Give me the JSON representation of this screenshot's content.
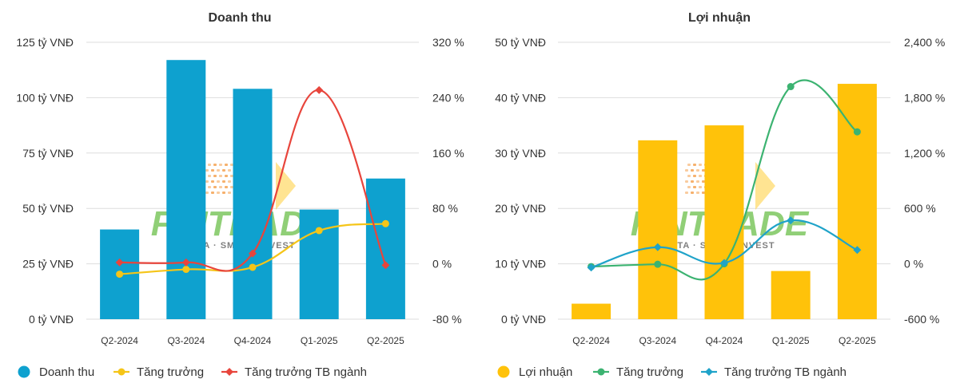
{
  "colors": {
    "bar_left": "#0EA1CF",
    "bar_right": "#FFC20A",
    "yellow_line": "#F5C518",
    "red_line": "#E8453C",
    "green_line": "#3CB371",
    "teal_line": "#1FA3C9",
    "grid": "#DDDDDD",
    "text": "#333333",
    "watermark_green": "#6CC04A",
    "watermark_orange": "#F28C28"
  },
  "watermark": {
    "brand": "FINTRADE",
    "tagline": "DATA · SMART INVEST"
  },
  "chart_data": [
    {
      "type": "bar+line",
      "title": "Doanh thu",
      "categories": [
        "Q2-2024",
        "Q3-2024",
        "Q4-2024",
        "Q1-2025",
        "Q2-2025"
      ],
      "y_left": {
        "ticks": [
          "0 tỷ VNĐ",
          "25 tỷ VNĐ",
          "50 tỷ VNĐ",
          "75 tỷ VNĐ",
          "100 tỷ VNĐ",
          "125 tỷ VNĐ"
        ],
        "min": 0,
        "max": 125,
        "unit": "tỷ VNĐ"
      },
      "y_right": {
        "ticks": [
          "-80 %",
          "0 %",
          "80 %",
          "160 %",
          "240 %",
          "320 %"
        ],
        "min": -80,
        "max": 320,
        "unit": "%"
      },
      "bars": {
        "name": "Doanh thu",
        "color": "#0EA1CF",
        "values": [
          40.5,
          117,
          104,
          49.5,
          63.5
        ]
      },
      "series": [
        {
          "name": "Tăng trưởng",
          "color": "#F5C518",
          "axis": "right",
          "values": [
            -15,
            -8,
            -5,
            48,
            58
          ]
        },
        {
          "name": "Tăng trưởng TB ngành",
          "color": "#E8453C",
          "axis": "right",
          "values": [
            2,
            2,
            15,
            251,
            -2
          ]
        }
      ],
      "legend": [
        {
          "label": "Doanh thu",
          "kind": "bar",
          "color": "#0EA1CF"
        },
        {
          "label": "Tăng trưởng",
          "kind": "line",
          "color": "#F5C518"
        },
        {
          "label": "Tăng trưởng TB ngành",
          "kind": "line",
          "color": "#E8453C"
        }
      ],
      "legend_position": "bottom-left",
      "grid": true
    },
    {
      "type": "bar+line",
      "title": "Lợi nhuận",
      "categories": [
        "Q2-2024",
        "Q3-2024",
        "Q4-2024",
        "Q1-2025",
        "Q2-2025"
      ],
      "y_left": {
        "ticks": [
          "0 tỷ VNĐ",
          "10 tỷ VNĐ",
          "20 tỷ VNĐ",
          "30 tỷ VNĐ",
          "40 tỷ VNĐ",
          "50 tỷ VNĐ"
        ],
        "min": 0,
        "max": 50,
        "unit": "tỷ VNĐ"
      },
      "y_right": {
        "ticks": [
          "-600 %",
          "0 %",
          "600 %",
          "1,200 %",
          "1,800 %",
          "2,400 %"
        ],
        "min": -600,
        "max": 2400,
        "unit": "%"
      },
      "bars": {
        "name": "Lợi nhuận",
        "color": "#FFC20A",
        "values": [
          2.8,
          32.3,
          35,
          8.7,
          42.5
        ]
      },
      "series": [
        {
          "name": "Tăng trưởng",
          "color": "#3CB371",
          "axis": "right",
          "values": [
            -30,
            -5,
            0,
            1920,
            1430
          ]
        },
        {
          "name": "Tăng trưởng TB ngành",
          "color": "#1FA3C9",
          "axis": "right",
          "values": [
            -40,
            180,
            10,
            470,
            150
          ]
        }
      ],
      "legend": [
        {
          "label": "Lợi nhuận",
          "kind": "bar",
          "color": "#FFC20A"
        },
        {
          "label": "Tăng trưởng",
          "kind": "line",
          "color": "#3CB371"
        },
        {
          "label": "Tăng trưởng TB ngành",
          "kind": "line",
          "color": "#1FA3C9"
        }
      ],
      "legend_position": "bottom-left",
      "grid": true
    }
  ]
}
